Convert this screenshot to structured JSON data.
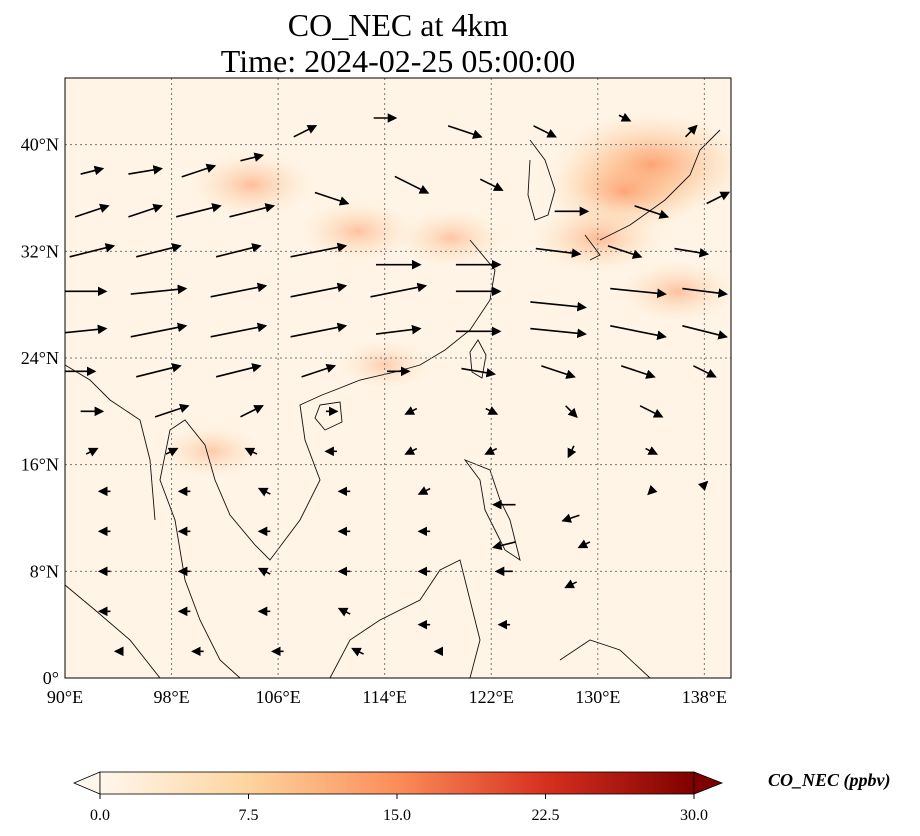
{
  "title": {
    "line1": "CO_NEC at 4km",
    "line2": "Time: 2024-02-25 05:00:00"
  },
  "map": {
    "projection": "PlateCarree",
    "lon_range": [
      90,
      140
    ],
    "lat_range": [
      0,
      45
    ],
    "gridlines": true,
    "grid_style": "dotted",
    "coastlines": true,
    "borders": true,
    "x_ticks": [
      "90°E",
      "98°E",
      "106°E",
      "114°E",
      "122°E",
      "130°E",
      "138°E"
    ],
    "y_ticks": [
      "0°",
      "8°N",
      "16°N",
      "24°N",
      "32°N",
      "40°N"
    ],
    "x_tick_values": [
      90,
      98,
      106,
      114,
      122,
      130,
      138
    ],
    "y_tick_values": [
      0,
      8,
      16,
      24,
      32,
      40
    ]
  },
  "field": {
    "variable": "CO_NEC",
    "colormap": "OrRd",
    "colors": {
      "low": "#fff7ec",
      "mid": "#fdd49e",
      "high": "#ef6548",
      "max": "#7f0000"
    },
    "features": [
      {
        "lon": 104,
        "lat": 37,
        "value": 4.5
      },
      {
        "lon": 112,
        "lat": 33.5,
        "value": 4.0
      },
      {
        "lon": 119,
        "lat": 33,
        "value": 3.5
      },
      {
        "lon": 134,
        "lat": 38.5,
        "value": 9.5
      },
      {
        "lon": 132,
        "lat": 36.5,
        "value": 7.0
      },
      {
        "lon": 130,
        "lat": 33,
        "value": 5.0
      },
      {
        "lon": 136,
        "lat": 29,
        "value": 4.0
      },
      {
        "lon": 114,
        "lat": 23.5,
        "value": 2.5
      },
      {
        "lon": 101,
        "lat": 17,
        "value": 3.0
      }
    ]
  },
  "wind_vectors": [
    {
      "lon": 92,
      "lat": 38,
      "u": 2,
      "v": 0.5
    },
    {
      "lon": 96,
      "lat": 38,
      "u": 3,
      "v": 0.5
    },
    {
      "lon": 100,
      "lat": 38,
      "u": 3,
      "v": 1
    },
    {
      "lon": 104,
      "lat": 39,
      "u": 2,
      "v": 0.5
    },
    {
      "lon": 108,
      "lat": 41,
      "u": 2,
      "v": 1
    },
    {
      "lon": 114,
      "lat": 42,
      "u": 2,
      "v": 0
    },
    {
      "lon": 120,
      "lat": 41,
      "u": 3,
      "v": -1
    },
    {
      "lon": 126,
      "lat": 41,
      "u": 2,
      "v": -1
    },
    {
      "lon": 132,
      "lat": 42,
      "u": 1,
      "v": -0.5
    },
    {
      "lon": 137,
      "lat": 41,
      "u": 1,
      "v": 1
    },
    {
      "lon": 92,
      "lat": 35,
      "u": 3,
      "v": 1
    },
    {
      "lon": 96,
      "lat": 35,
      "u": 3,
      "v": 1
    },
    {
      "lon": 100,
      "lat": 35,
      "u": 4,
      "v": 1
    },
    {
      "lon": 104,
      "lat": 35,
      "u": 4,
      "v": 1
    },
    {
      "lon": 110,
      "lat": 36,
      "u": 3,
      "v": -1
    },
    {
      "lon": 116,
      "lat": 37,
      "u": 3,
      "v": -1.5
    },
    {
      "lon": 122,
      "lat": 37,
      "u": 2,
      "v": -1
    },
    {
      "lon": 128,
      "lat": 35,
      "u": 3,
      "v": 0
    },
    {
      "lon": 134,
      "lat": 35,
      "u": 3,
      "v": -1
    },
    {
      "lon": 139,
      "lat": 36,
      "u": 2,
      "v": 1
    },
    {
      "lon": 92,
      "lat": 32,
      "u": 4,
      "v": 1
    },
    {
      "lon": 97,
      "lat": 32,
      "u": 4,
      "v": 1
    },
    {
      "lon": 103,
      "lat": 32,
      "u": 4,
      "v": 1
    },
    {
      "lon": 109,
      "lat": 32,
      "u": 5,
      "v": 1
    },
    {
      "lon": 115,
      "lat": 31,
      "u": 4,
      "v": 0
    },
    {
      "lon": 121,
      "lat": 31,
      "u": 4,
      "v": 0
    },
    {
      "lon": 127,
      "lat": 32,
      "u": 4,
      "v": -0.5
    },
    {
      "lon": 132,
      "lat": 32,
      "u": 3,
      "v": -1
    },
    {
      "lon": 137,
      "lat": 32,
      "u": 3,
      "v": -0.5
    },
    {
      "lon": 91,
      "lat": 29,
      "u": 5,
      "v": 0
    },
    {
      "lon": 97,
      "lat": 29,
      "u": 5,
      "v": 0.5
    },
    {
      "lon": 103,
      "lat": 29,
      "u": 5,
      "v": 1
    },
    {
      "lon": 109,
      "lat": 29,
      "u": 5,
      "v": 1
    },
    {
      "lon": 115,
      "lat": 29,
      "u": 5,
      "v": 1
    },
    {
      "lon": 121,
      "lat": 29,
      "u": 4,
      "v": 0
    },
    {
      "lon": 127,
      "lat": 28,
      "u": 5,
      "v": -0.5
    },
    {
      "lon": 133,
      "lat": 29,
      "u": 5,
      "v": -0.5
    },
    {
      "lon": 138,
      "lat": 29,
      "u": 4,
      "v": -0.5
    },
    {
      "lon": 91,
      "lat": 26,
      "u": 5,
      "v": 0.5
    },
    {
      "lon": 97,
      "lat": 26,
      "u": 5,
      "v": 1
    },
    {
      "lon": 103,
      "lat": 26,
      "u": 5,
      "v": 1
    },
    {
      "lon": 109,
      "lat": 26,
      "u": 5,
      "v": 1
    },
    {
      "lon": 115,
      "lat": 26,
      "u": 4,
      "v": 0.5
    },
    {
      "lon": 121,
      "lat": 26,
      "u": 4,
      "v": 0
    },
    {
      "lon": 127,
      "lat": 26,
      "u": 5,
      "v": -0.5
    },
    {
      "lon": 133,
      "lat": 26,
      "u": 5,
      "v": -1
    },
    {
      "lon": 138,
      "lat": 26,
      "u": 4,
      "v": -1
    },
    {
      "lon": 91,
      "lat": 23,
      "u": 3,
      "v": 0
    },
    {
      "lon": 97,
      "lat": 23,
      "u": 4,
      "v": 1
    },
    {
      "lon": 103,
      "lat": 23,
      "u": 4,
      "v": 1
    },
    {
      "lon": 109,
      "lat": 23,
      "u": 3,
      "v": 1
    },
    {
      "lon": 115,
      "lat": 23,
      "u": 2,
      "v": 0
    },
    {
      "lon": 121,
      "lat": 23,
      "u": 3,
      "v": -0.5
    },
    {
      "lon": 127,
      "lat": 23,
      "u": 3,
      "v": -1
    },
    {
      "lon": 133,
      "lat": 23,
      "u": 3,
      "v": -1
    },
    {
      "lon": 138,
      "lat": 23,
      "u": 2,
      "v": -1
    },
    {
      "lon": 92,
      "lat": 20,
      "u": 2,
      "v": 0
    },
    {
      "lon": 98,
      "lat": 20,
      "u": 3,
      "v": 1
    },
    {
      "lon": 104,
      "lat": 20,
      "u": 2,
      "v": 1
    },
    {
      "lon": 110,
      "lat": 20,
      "u": 1,
      "v": 0
    },
    {
      "lon": 116,
      "lat": 20,
      "u": -1,
      "v": -0.5
    },
    {
      "lon": 122,
      "lat": 20,
      "u": 1,
      "v": -0.5
    },
    {
      "lon": 128,
      "lat": 20,
      "u": 1,
      "v": -1
    },
    {
      "lon": 134,
      "lat": 20,
      "u": 2,
      "v": -1
    },
    {
      "lon": 92,
      "lat": 17,
      "u": 1,
      "v": 0.5
    },
    {
      "lon": 98,
      "lat": 17,
      "u": 1,
      "v": 0.5
    },
    {
      "lon": 104,
      "lat": 17,
      "u": -1,
      "v": 0.5
    },
    {
      "lon": 110,
      "lat": 17,
      "u": -1,
      "v": 0
    },
    {
      "lon": 116,
      "lat": 17,
      "u": -1,
      "v": -0.5
    },
    {
      "lon": 122,
      "lat": 17,
      "u": -1,
      "v": -0.5
    },
    {
      "lon": 128,
      "lat": 17,
      "u": -0.5,
      "v": -1
    },
    {
      "lon": 134,
      "lat": 17,
      "u": 1,
      "v": -0.5
    },
    {
      "lon": 138,
      "lat": 14.5,
      "u": 0.5,
      "v": 0.5
    },
    {
      "lon": 93,
      "lat": 14,
      "u": -1,
      "v": 0
    },
    {
      "lon": 99,
      "lat": 14,
      "u": -1,
      "v": 0
    },
    {
      "lon": 105,
      "lat": 14,
      "u": -1,
      "v": 0.5
    },
    {
      "lon": 111,
      "lat": 14,
      "u": -1,
      "v": 0
    },
    {
      "lon": 117,
      "lat": 14,
      "u": -1,
      "v": -0.5
    },
    {
      "lon": 123,
      "lat": 13,
      "u": -2,
      "v": 0
    },
    {
      "lon": 128,
      "lat": 12,
      "u": -1.5,
      "v": -0.5
    },
    {
      "lon": 134,
      "lat": 14,
      "u": -0.5,
      "v": -0.5
    },
    {
      "lon": 93,
      "lat": 11,
      "u": -1,
      "v": 0
    },
    {
      "lon": 99,
      "lat": 11,
      "u": -1,
      "v": 0
    },
    {
      "lon": 105,
      "lat": 11,
      "u": -1,
      "v": 0
    },
    {
      "lon": 111,
      "lat": 11,
      "u": -1,
      "v": 0
    },
    {
      "lon": 117,
      "lat": 11,
      "u": -1,
      "v": 0
    },
    {
      "lon": 123,
      "lat": 10,
      "u": -2,
      "v": -0.5
    },
    {
      "lon": 129,
      "lat": 10,
      "u": -1,
      "v": -0.5
    },
    {
      "lon": 93,
      "lat": 8,
      "u": -1,
      "v": 0
    },
    {
      "lon": 99,
      "lat": 8,
      "u": -1,
      "v": 0
    },
    {
      "lon": 105,
      "lat": 8,
      "u": -1,
      "v": 0.5
    },
    {
      "lon": 111,
      "lat": 8,
      "u": -1,
      "v": 0
    },
    {
      "lon": 117,
      "lat": 8,
      "u": -1,
      "v": 0
    },
    {
      "lon": 123,
      "lat": 8,
      "u": -1.5,
      "v": 0
    },
    {
      "lon": 128,
      "lat": 7,
      "u": -1,
      "v": -0.5
    },
    {
      "lon": 93,
      "lat": 5,
      "u": -1,
      "v": 0
    },
    {
      "lon": 99,
      "lat": 5,
      "u": -1,
      "v": 0
    },
    {
      "lon": 105,
      "lat": 5,
      "u": -1,
      "v": 0
    },
    {
      "lon": 111,
      "lat": 5,
      "u": -1,
      "v": 0.5
    },
    {
      "lon": 117,
      "lat": 4,
      "u": -1,
      "v": 0
    },
    {
      "lon": 123,
      "lat": 4,
      "u": -1,
      "v": 0
    },
    {
      "lon": 94,
      "lat": 2,
      "u": -0.5,
      "v": 0
    },
    {
      "lon": 100,
      "lat": 2,
      "u": -1,
      "v": 0
    },
    {
      "lon": 106,
      "lat": 2,
      "u": -1,
      "v": 0
    },
    {
      "lon": 112,
      "lat": 2,
      "u": -1,
      "v": 0.5
    },
    {
      "lon": 118,
      "lat": 2,
      "u": -0.5,
      "v": 0
    }
  ],
  "colorbar": {
    "label": "CO_NEC (ppbv)",
    "min": 0.0,
    "max": 30.0,
    "extend": "both",
    "ticks": [
      "0.0",
      "7.5",
      "15.0",
      "22.5",
      "30.0"
    ],
    "tick_values": [
      0,
      7.5,
      15,
      22.5,
      30
    ]
  }
}
